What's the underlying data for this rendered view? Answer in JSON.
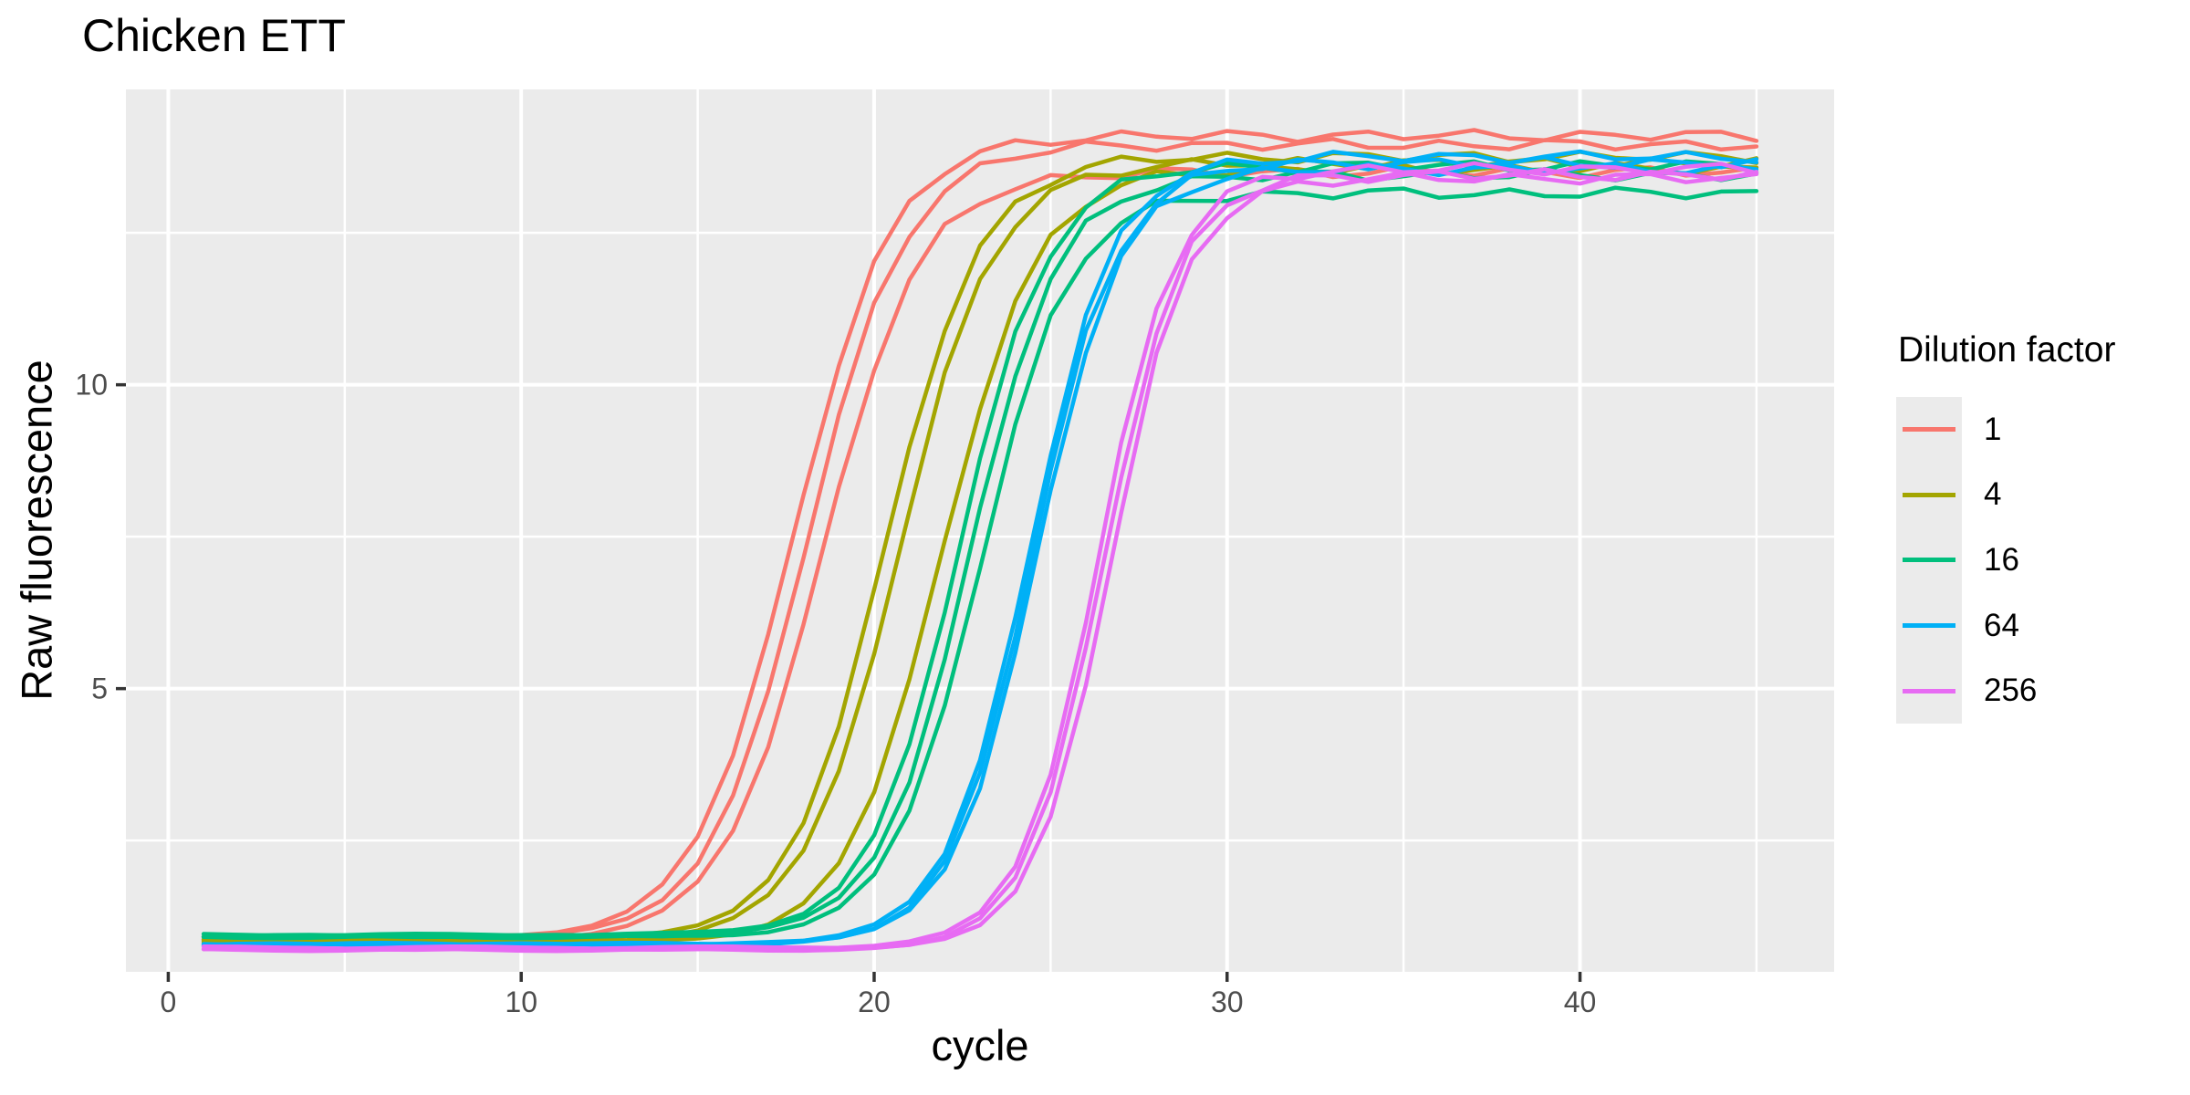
{
  "title": "Chicken ETT",
  "legend": {
    "title": "Dilution factor",
    "position": "right",
    "entries": [
      {
        "label": "1",
        "color": "#F8766D"
      },
      {
        "label": "4",
        "color": "#A3A500"
      },
      {
        "label": "16",
        "color": "#00BF7D"
      },
      {
        "label": "64",
        "color": "#00B0F6"
      },
      {
        "label": "256",
        "color": "#E76BF3"
      }
    ]
  },
  "colors": {
    "panel_bg": "#EBEBEB",
    "gridline": "#FFFFFF",
    "tick_label": "#4D4D4D",
    "tick_mark": "#333333",
    "text": "#000000"
  },
  "chart_data": {
    "type": "line",
    "title": "Chicken ETT",
    "xlabel": "cycle",
    "ylabel": "Raw fluorescence",
    "cycle_min": 1,
    "cycle_max": 45,
    "cycle_step": 1,
    "xlim": [
      -1.2,
      47.2
    ],
    "ylim": [
      0.34,
      14.86
    ],
    "x_ticks": [
      0,
      10,
      20,
      30,
      40
    ],
    "x_minor": [
      5,
      15,
      25,
      35,
      45
    ],
    "y_ticks": [
      5,
      10
    ],
    "y_minor": [
      2.5,
      7.5,
      12.5
    ],
    "grid": true,
    "legend_position": "right",
    "model": "value(cycle) = baseline + (plateau-baseline)/(1+exp(-slope*(cycle-midpoint))) + small noise; 3 replicate wells per dilution factor, cycles 1-45",
    "series": [
      {
        "name": "dilution 1 rep 1",
        "dilution": "1",
        "color": "#F8766D",
        "baseline": 0.9,
        "plateau": 14.1,
        "midpoint": 17.7,
        "slope": 0.72,
        "phase": 0.5
      },
      {
        "name": "dilution 1 rep 2",
        "dilution": "1",
        "color": "#F8766D",
        "baseline": 0.88,
        "plateau": 13.95,
        "midpoint": 18.1,
        "slope": 0.72,
        "phase": 2.1
      },
      {
        "name": "dilution 1 rep 3",
        "dilution": "1",
        "color": "#F8766D",
        "baseline": 0.86,
        "plateau": 13.5,
        "midpoint": 18.5,
        "slope": 0.72,
        "phase": 4.2
      },
      {
        "name": "dilution 4 rep 1",
        "dilution": "4",
        "color": "#A3A500",
        "baseline": 0.86,
        "plateau": 13.75,
        "midpoint": 20.3,
        "slope": 0.75,
        "phase": 1.0
      },
      {
        "name": "dilution 4 rep 2",
        "dilution": "4",
        "color": "#A3A500",
        "baseline": 0.84,
        "plateau": 13.65,
        "midpoint": 20.7,
        "slope": 0.75,
        "phase": 3.3
      },
      {
        "name": "dilution 4 rep 3",
        "dilution": "4",
        "color": "#A3A500",
        "baseline": 0.82,
        "plateau": 13.55,
        "midpoint": 21.9,
        "slope": 0.75,
        "phase": 5.1
      },
      {
        "name": "dilution 16 rep 1",
        "dilution": "16",
        "color": "#00BF7D",
        "baseline": 0.95,
        "plateau": 13.6,
        "midpoint": 22.4,
        "slope": 0.8,
        "phase": 0.8
      },
      {
        "name": "dilution 16 rep 2",
        "dilution": "16",
        "color": "#00BF7D",
        "baseline": 0.93,
        "plateau": 13.45,
        "midpoint": 22.7,
        "slope": 0.8,
        "phase": 2.6
      },
      {
        "name": "dilution 16 rep 3",
        "dilution": "16",
        "color": "#00BF7D",
        "baseline": 0.91,
        "plateau": 13.15,
        "midpoint": 23.0,
        "slope": 0.8,
        "phase": 4.9
      },
      {
        "name": "dilution 64 rep 1",
        "dilution": "64",
        "color": "#00B0F6",
        "baseline": 0.8,
        "plateau": 13.75,
        "midpoint": 24.4,
        "slope": 0.85,
        "phase": 1.4
      },
      {
        "name": "dilution 64 rep 2",
        "dilution": "64",
        "color": "#00B0F6",
        "baseline": 0.79,
        "plateau": 13.65,
        "midpoint": 24.5,
        "slope": 0.85,
        "phase": 3.0
      },
      {
        "name": "dilution 64 rep 3",
        "dilution": "64",
        "color": "#00B0F6",
        "baseline": 0.78,
        "plateau": 13.55,
        "midpoint": 24.6,
        "slope": 0.85,
        "phase": 5.6
      },
      {
        "name": "dilution 256 rep 1",
        "dilution": "256",
        "color": "#E76BF3",
        "baseline": 0.74,
        "plateau": 13.55,
        "midpoint": 26.35,
        "slope": 0.92,
        "phase": 0.2
      },
      {
        "name": "dilution 256 rep 2",
        "dilution": "256",
        "color": "#E76BF3",
        "baseline": 0.72,
        "plateau": 13.45,
        "midpoint": 26.5,
        "slope": 0.92,
        "phase": 2.9
      },
      {
        "name": "dilution 256 rep 3",
        "dilution": "256",
        "color": "#E76BF3",
        "baseline": 0.7,
        "plateau": 13.4,
        "midpoint": 26.7,
        "slope": 0.92,
        "phase": 4.4
      }
    ]
  }
}
